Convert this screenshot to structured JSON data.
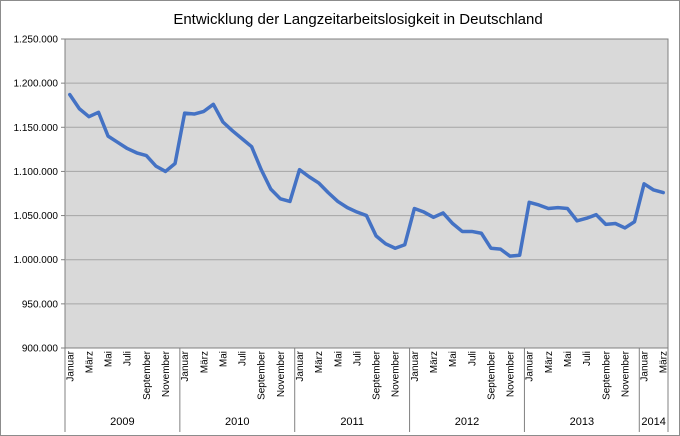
{
  "chart_data": {
    "type": "line",
    "title": "Entwicklung der Langzeitarbeitslosigkeit in Deutschland",
    "xlabel": "",
    "ylabel": "",
    "ylim": [
      900000,
      1250000
    ],
    "yticks": [
      "1.250.000",
      "1.200.000",
      "1.150.000",
      "1.100.000",
      "1.050.000",
      "1.000.000",
      "950.000",
      "900.000"
    ],
    "grid": true,
    "legend": "none",
    "colors": {
      "line": "#4472C4",
      "plot_bg": "#D9D9D9",
      "gridline": "#A6A6A6"
    },
    "x": [
      "Januar",
      "",
      "März",
      "",
      "Mai",
      "",
      "Juli",
      "",
      "September",
      "",
      "November",
      "",
      "Januar",
      "",
      "März",
      "",
      "Mai",
      "",
      "Juli",
      "",
      "September",
      "",
      "November",
      "",
      "Januar",
      "",
      "März",
      "",
      "Mai",
      "",
      "Juli",
      "",
      "September",
      "",
      "November",
      "",
      "Januar",
      "",
      "März",
      "",
      "Mai",
      "",
      "Juli",
      "",
      "September",
      "",
      "November",
      "",
      "Januar",
      "",
      "März",
      "",
      "Mai",
      "",
      "Juli",
      "",
      "September",
      "",
      "November",
      "",
      "Januar",
      "",
      "März"
    ],
    "years": [
      {
        "label": "2009",
        "months": 12
      },
      {
        "label": "2010",
        "months": 12
      },
      {
        "label": "2011",
        "months": 12
      },
      {
        "label": "2012",
        "months": 12
      },
      {
        "label": "2013",
        "months": 12
      },
      {
        "label": "2014",
        "months": 3
      }
    ],
    "series": [
      {
        "values": [
          1187000,
          1171000,
          1162000,
          1167000,
          1140000,
          1133000,
          1126000,
          1121000,
          1118000,
          1106000,
          1100000,
          1109000,
          1166000,
          1165000,
          1168000,
          1176000,
          1156000,
          1146000,
          1137000,
          1128000,
          1102000,
          1080000,
          1069000,
          1066000,
          1102000,
          1094000,
          1087000,
          1076000,
          1066000,
          1059000,
          1054000,
          1050000,
          1027000,
          1018000,
          1013000,
          1017000,
          1058000,
          1054000,
          1048000,
          1053000,
          1041000,
          1032000,
          1032000,
          1030000,
          1013000,
          1012000,
          1004000,
          1005000,
          1065000,
          1062000,
          1058000,
          1059000,
          1058000,
          1044000,
          1047000,
          1051000,
          1040000,
          1041000,
          1036000,
          1043000,
          1086000,
          1079000,
          1076000
        ]
      }
    ]
  }
}
